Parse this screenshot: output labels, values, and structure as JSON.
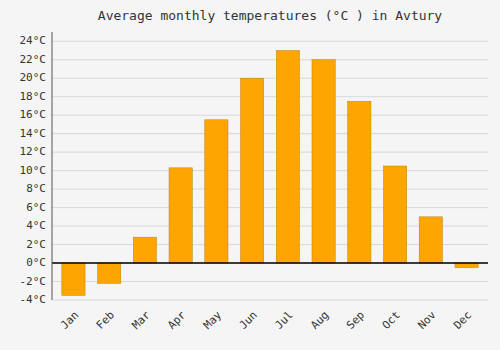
{
  "chart_data": {
    "type": "bar",
    "title": "Average monthly temperatures (°C ) in Avtury",
    "categories": [
      "Jan",
      "Feb",
      "Mar",
      "Apr",
      "May",
      "Jun",
      "Jul",
      "Aug",
      "Sep",
      "Oct",
      "Nov",
      "Dec"
    ],
    "values": [
      -3.5,
      -2.2,
      2.8,
      10.3,
      15.5,
      20.0,
      23.0,
      22.0,
      17.5,
      10.5,
      5.0,
      -0.5
    ],
    "color": "#FFA500",
    "ylim": [
      -4,
      25
    ],
    "yticks": [
      {
        "value": -4,
        "label": "-4°C"
      },
      {
        "value": -2,
        "label": "-2°C"
      },
      {
        "value": 0,
        "label": "0°C"
      },
      {
        "value": 2,
        "label": "2°C"
      },
      {
        "value": 4,
        "label": "4°C"
      },
      {
        "value": 6,
        "label": "6°C"
      },
      {
        "value": 8,
        "label": "8°C"
      },
      {
        "value": 10,
        "label": "10°C"
      },
      {
        "value": 12,
        "label": "12°C"
      },
      {
        "value": 14,
        "label": "14°C"
      },
      {
        "value": 16,
        "label": "16°C"
      },
      {
        "value": 18,
        "label": "18°C"
      },
      {
        "value": 20,
        "label": "20°C"
      },
      {
        "value": 22,
        "label": "22°C"
      },
      {
        "value": 24,
        "label": "24°C"
      }
    ],
    "grid": true
  }
}
